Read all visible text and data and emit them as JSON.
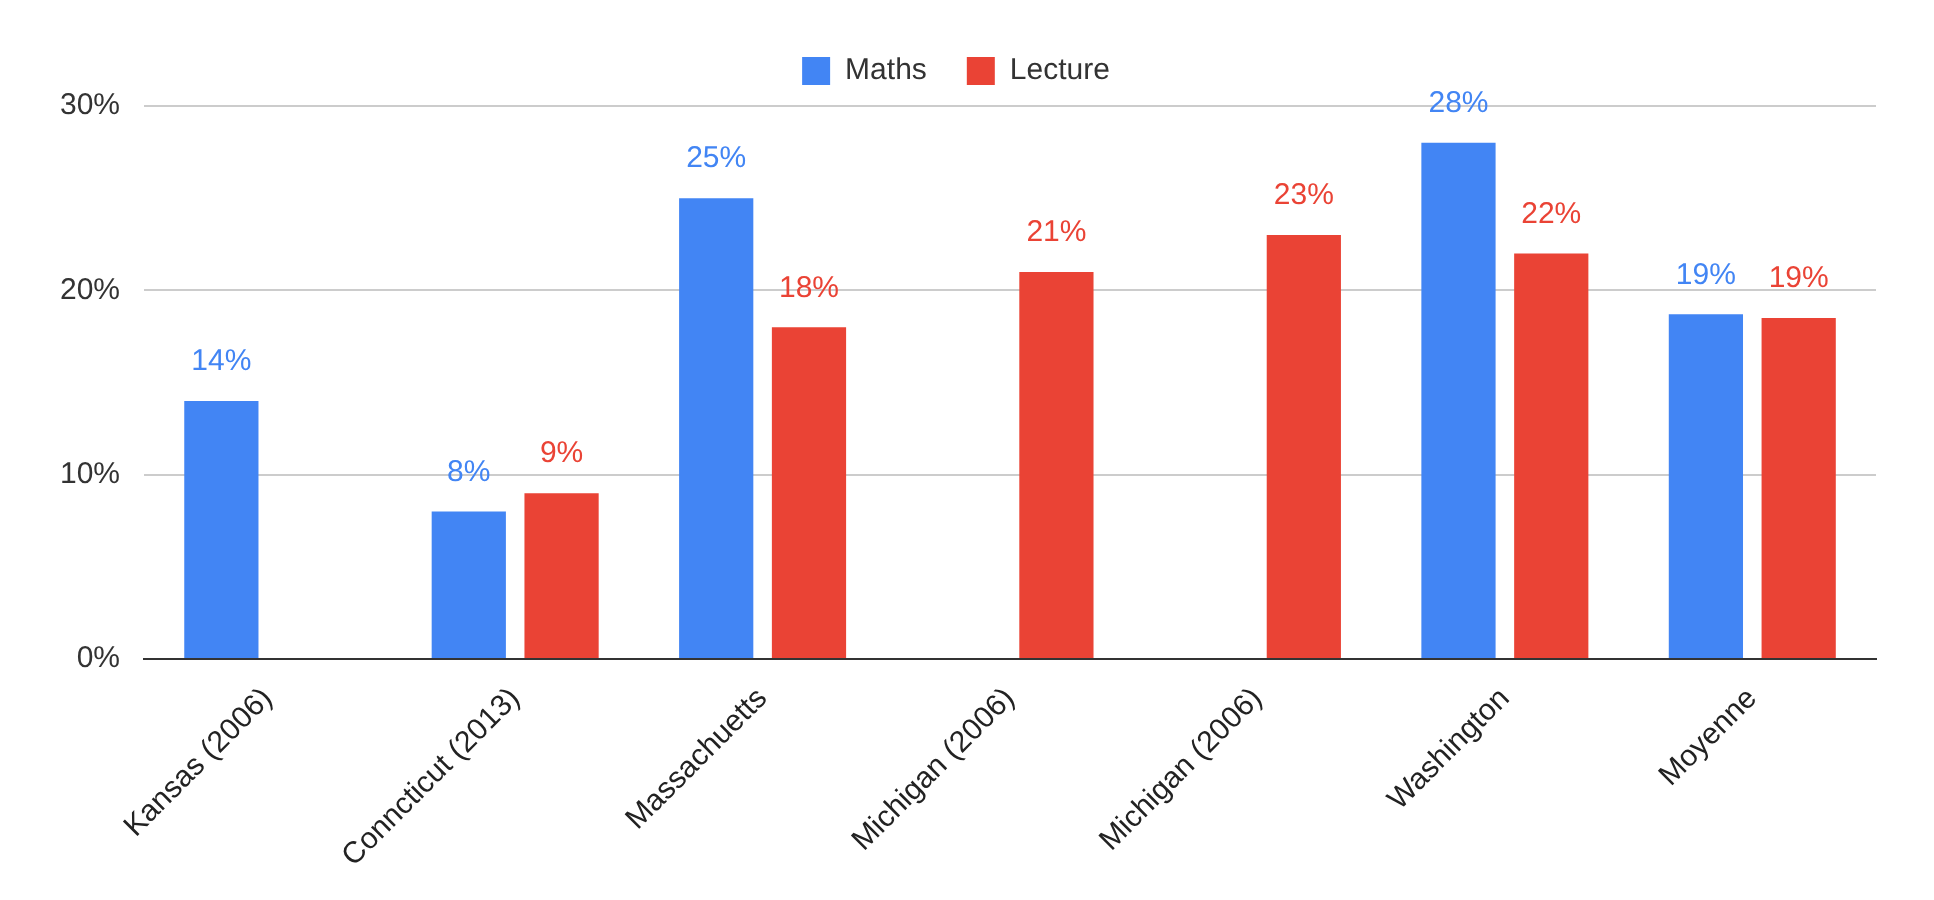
{
  "chart_data": {
    "type": "bar",
    "categories": [
      "Kansas (2006)",
      "Conncticut (2013)",
      "Massachuetts",
      "Michigan (2006)",
      "Michigan (2006)",
      "Washington",
      "Moyenne"
    ],
    "series": [
      {
        "name": "Maths",
        "color": "#4285f4",
        "values": [
          14,
          8,
          25,
          null,
          null,
          28,
          18.7
        ],
        "value_labels": [
          "14%",
          "8%",
          "25%",
          null,
          null,
          "28%",
          "19%"
        ]
      },
      {
        "name": "Lecture",
        "color": "#ea4335",
        "values": [
          null,
          9,
          18,
          21,
          23,
          22,
          18.5
        ],
        "value_labels": [
          null,
          "9%",
          "18%",
          "21%",
          "23%",
          "22%",
          "19%"
        ]
      }
    ],
    "ylim": [
      0,
      30
    ],
    "yticks": [
      {
        "value": 0,
        "label": "0%"
      },
      {
        "value": 10,
        "label": "10%"
      },
      {
        "value": 20,
        "label": "20%"
      },
      {
        "value": 30,
        "label": "30%"
      }
    ],
    "grid": "y",
    "legend": "top"
  }
}
